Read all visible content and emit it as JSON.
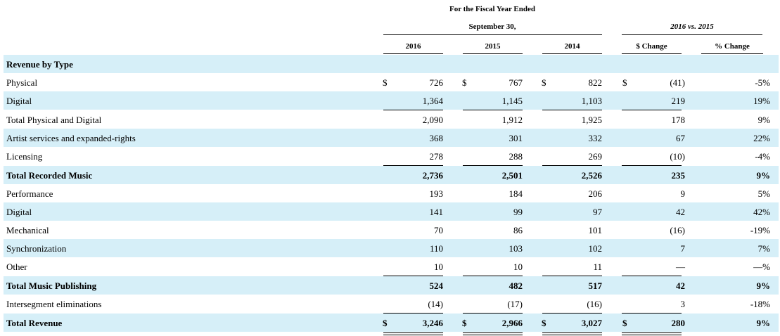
{
  "header": {
    "fiscal_line1": "For the Fiscal Year Ended",
    "fiscal_line2": "September 30,",
    "compare_label": "2016 vs. 2015",
    "col_2016": "2016",
    "col_2015": "2015",
    "col_2014": "2014",
    "col_dollar_change": "$ Change",
    "col_pct_change": "% Change"
  },
  "section_title": "Revenue by Type",
  "currency_symbol": "$",
  "rows": [
    {
      "label": "Physical",
      "v2016": "726",
      "v2015": "767",
      "v2014": "822",
      "change": "(41)",
      "pct": "-5%"
    },
    {
      "label": "Digital",
      "v2016": "1,364",
      "v2015": "1,145",
      "v2014": "1,103",
      "change": "219",
      "pct": "19%"
    },
    {
      "label": "Total Physical and Digital",
      "v2016": "2,090",
      "v2015": "1,912",
      "v2014": "1,925",
      "change": "178",
      "pct": "9%"
    },
    {
      "label": "Artist services and expanded-rights",
      "v2016": "368",
      "v2015": "301",
      "v2014": "332",
      "change": "67",
      "pct": "22%"
    },
    {
      "label": "Licensing",
      "v2016": "278",
      "v2015": "288",
      "v2014": "269",
      "change": "(10)",
      "pct": "-4%"
    },
    {
      "label": "Total Recorded Music",
      "v2016": "2,736",
      "v2015": "2,501",
      "v2014": "2,526",
      "change": "235",
      "pct": "9%"
    },
    {
      "label": "Performance",
      "v2016": "193",
      "v2015": "184",
      "v2014": "206",
      "change": "9",
      "pct": "5%"
    },
    {
      "label": "Digital",
      "v2016": "141",
      "v2015": "99",
      "v2014": "97",
      "change": "42",
      "pct": "42%"
    },
    {
      "label": "Mechanical",
      "v2016": "70",
      "v2015": "86",
      "v2014": "101",
      "change": "(16)",
      "pct": "-19%"
    },
    {
      "label": "Synchronization",
      "v2016": "110",
      "v2015": "103",
      "v2014": "102",
      "change": "7",
      "pct": "7%"
    },
    {
      "label": "Other",
      "v2016": "10",
      "v2015": "10",
      "v2014": "11",
      "change": "—",
      "pct": "—%"
    },
    {
      "label": "Total Music Publishing",
      "v2016": "524",
      "v2015": "482",
      "v2014": "517",
      "change": "42",
      "pct": "9%"
    },
    {
      "label": "Intersegment eliminations",
      "v2016": "(14)",
      "v2015": "(17)",
      "v2014": "(16)",
      "change": "3",
      "pct": "-18%"
    },
    {
      "label": "Total Revenue",
      "v2016": "3,246",
      "v2015": "2,966",
      "v2014": "3,027",
      "change": "280",
      "pct": "9%"
    }
  ],
  "colors": {
    "row_shade": "#d6eff8",
    "text": "#000000"
  }
}
